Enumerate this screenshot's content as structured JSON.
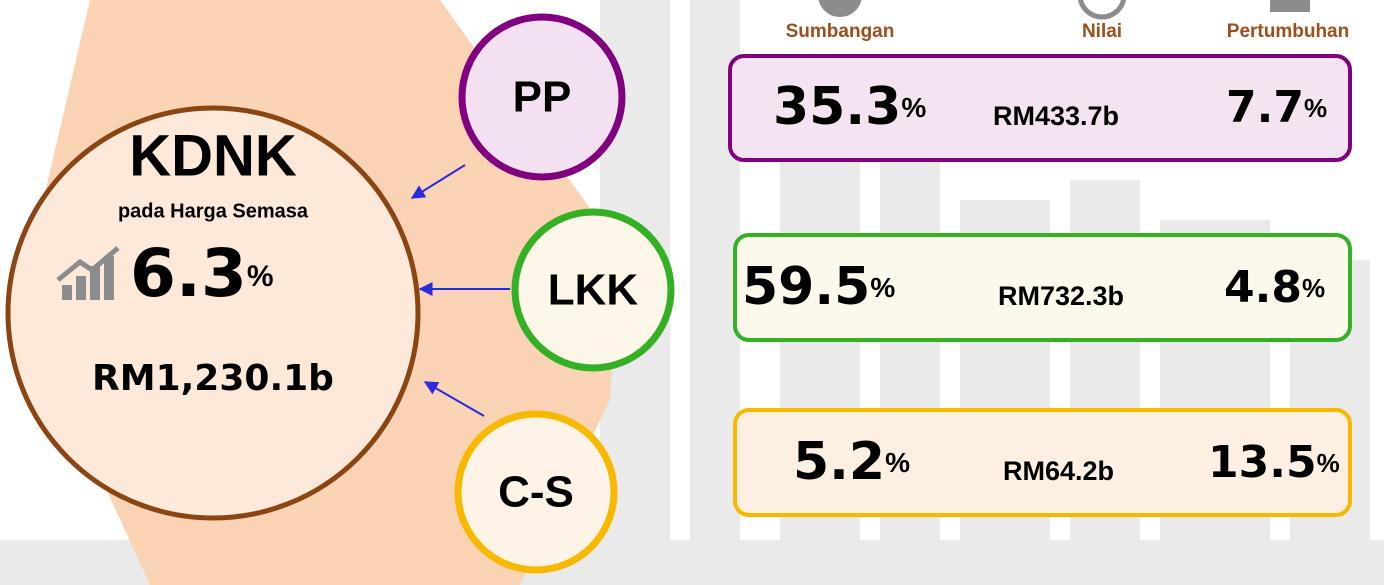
{
  "header": {
    "labels": [
      "Sumbangan",
      "Nilai",
      "Pertumbuhan"
    ]
  },
  "main": {
    "title": "KDNK",
    "subtitle": "pada Harga Semasa",
    "growth": "6.3",
    "growth_unit": "%",
    "value": "RM1,230.1b"
  },
  "sectors": [
    {
      "label": "PP",
      "share": "35.3",
      "share_unit": "%",
      "value": "RM433.7b",
      "growth": "7.7",
      "growth_unit": "%"
    },
    {
      "label": "LKK",
      "share": "59.5",
      "share_unit": "%",
      "value": "RM732.3b",
      "growth": "4.8",
      "growth_unit": "%"
    },
    {
      "label": "C-S",
      "share": "5.2",
      "share_unit": "%",
      "value": "RM64.2b",
      "growth": "13.5",
      "growth_unit": "%"
    }
  ]
}
